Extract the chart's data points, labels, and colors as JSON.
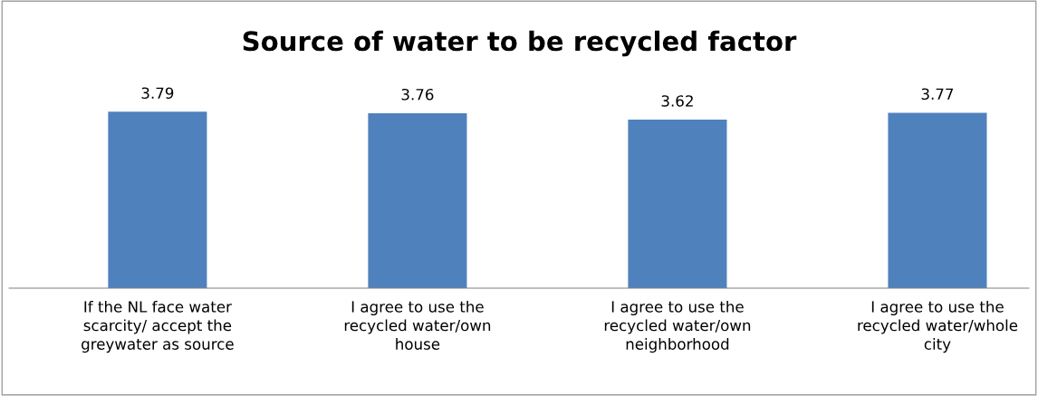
{
  "chart_data": {
    "type": "bar",
    "title": "Source of water to be recycled factor",
    "categories": [
      "If the NL face water scarcity/ accept the greywater as source",
      "I agree to use the recycled water/own house",
      "I agree to use the recycled water/own neighborhood",
      "I agree to use the recycled water/whole city"
    ],
    "values": [
      3.79,
      3.76,
      3.62,
      3.77
    ],
    "color": "#4f81bd",
    "data_labels": true,
    "grid": false,
    "legend": false
  }
}
